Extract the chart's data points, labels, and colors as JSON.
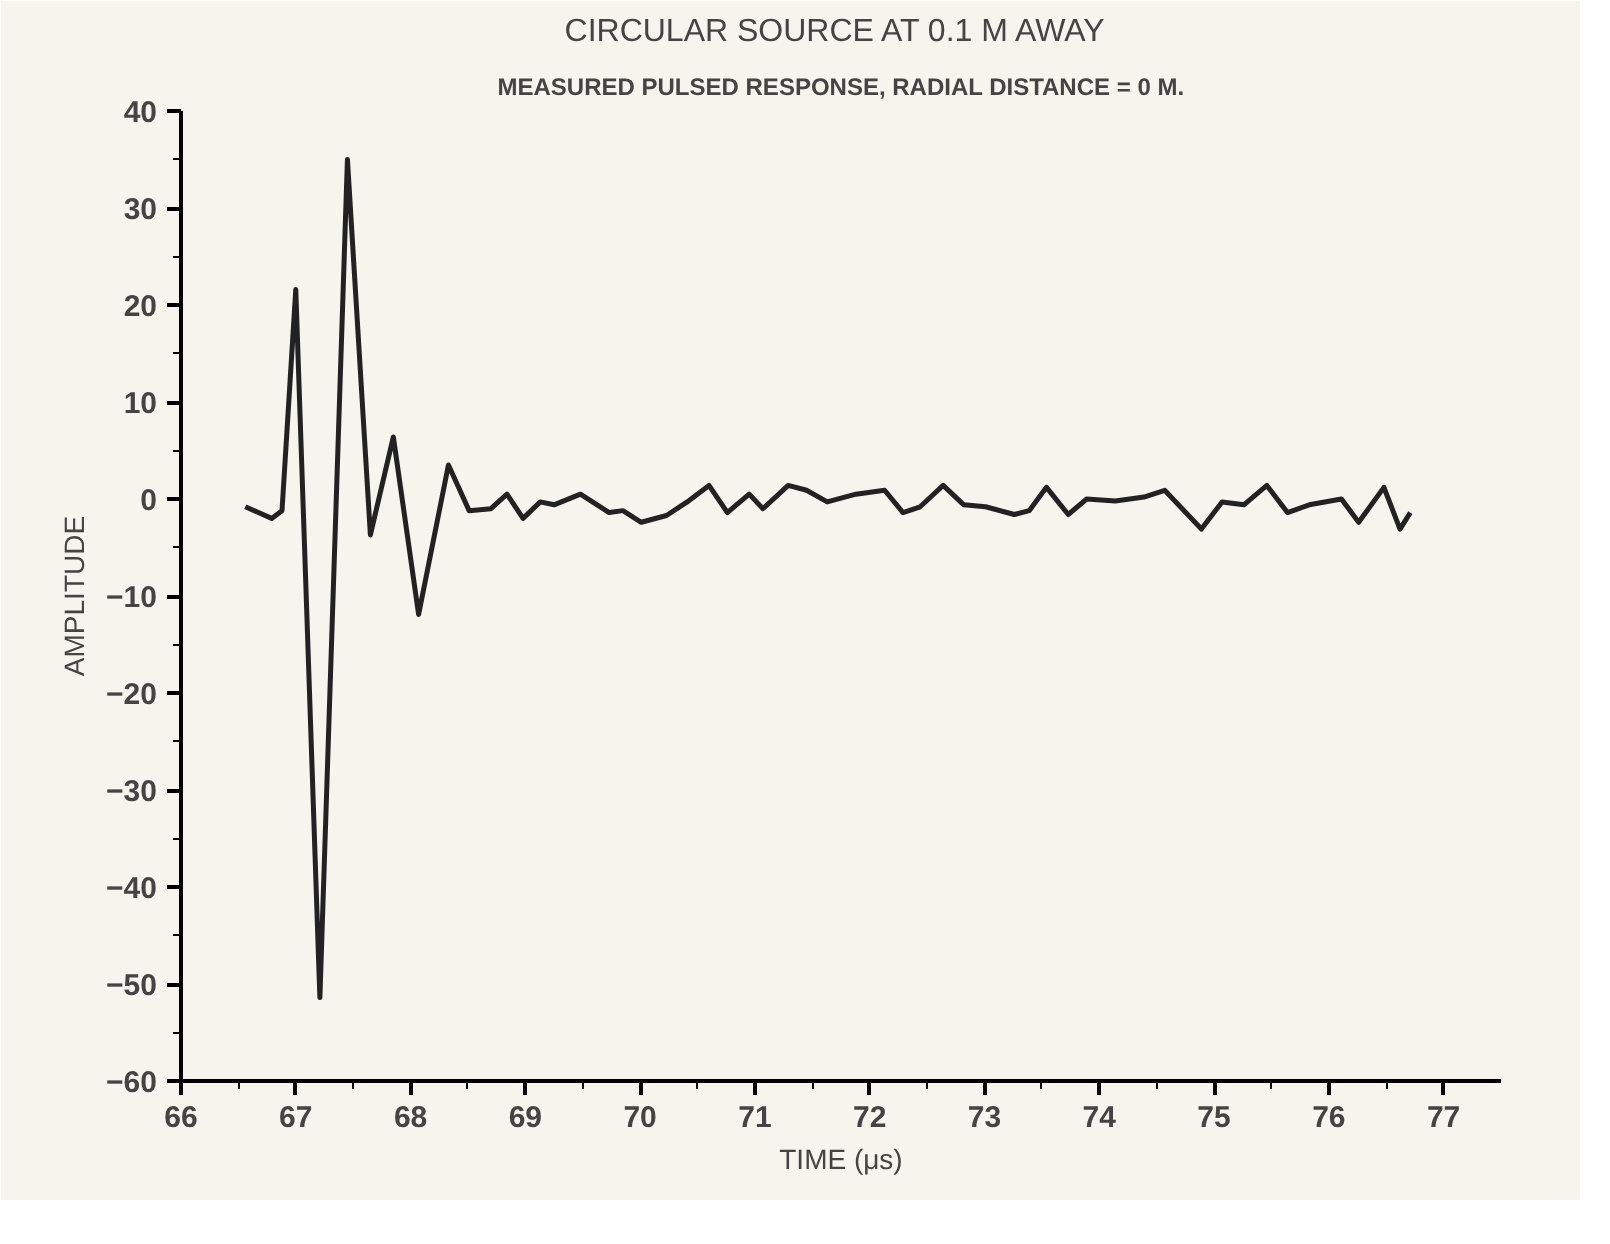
{
  "chart_data": {
    "type": "line",
    "title": "CIRCULAR SOURCE AT 0.1  M AWAY",
    "subtitle": "MEASURED PULSED RESPONSE, RADIAL DISTANCE = 0 M.",
    "xlabel": "TIME (μs)",
    "ylabel": "AMPLITUDE",
    "x": [
      66.56,
      66.79,
      66.88,
      67.0,
      67.21,
      67.45,
      67.65,
      67.85,
      68.07,
      68.33,
      68.51,
      68.7,
      68.84,
      68.98,
      69.13,
      69.25,
      69.48,
      69.73,
      69.85,
      70.01,
      70.23,
      70.41,
      70.6,
      70.76,
      70.95,
      71.07,
      71.29,
      71.45,
      71.63,
      71.88,
      72.13,
      72.29,
      72.44,
      72.64,
      72.82,
      73.01,
      73.26,
      73.39,
      73.54,
      73.73,
      73.89,
      74.14,
      74.39,
      74.57,
      74.89,
      75.07,
      75.26,
      75.46,
      75.64,
      75.83,
      76.11,
      76.26,
      76.48,
      76.62,
      76.71
    ],
    "series": [
      {
        "color": "#222222",
        "values": [
          -0.8,
          -2,
          -1.2,
          21.6,
          -51.4,
          35,
          -3.7,
          6.4,
          -11.9,
          3.5,
          -1.2,
          -1,
          0.5,
          -2,
          -0.3,
          -0.6,
          0.5,
          -1.4,
          -1.2,
          -2.4,
          -1.7,
          -0.3,
          1.4,
          -1.4,
          0.5,
          -1,
          1.4,
          0.9,
          -0.3,
          0.5,
          0.9,
          -1.4,
          -0.8,
          1.4,
          -0.6,
          -0.8,
          -1.6,
          -1.2,
          1.2,
          -1.6,
          0,
          -0.2,
          0.2,
          0.9,
          -3.1,
          -0.3,
          -0.6,
          1.4,
          -1.4,
          -0.6,
          0,
          -2.4,
          1.2,
          -3.1,
          -1.4
        ]
      }
    ],
    "xlim": [
      66,
      77.5
    ],
    "ylim": [
      -60,
      40
    ],
    "xticks": [
      66,
      {
        "value": 66.5,
        "label": null
      },
      67,
      {
        "value": 67.5,
        "label": null
      },
      68,
      {
        "value": 68.5,
        "label": null
      },
      69,
      {
        "value": 69.5,
        "label": null
      },
      70,
      {
        "value": 70.5,
        "label": null
      },
      71,
      {
        "value": 71.5,
        "label": null
      },
      72,
      {
        "value": 72.5,
        "label": null
      },
      73,
      {
        "value": 73.5,
        "label": null
      },
      74,
      {
        "value": 74.5,
        "label": null
      },
      75,
      {
        "value": 75.5,
        "label": null
      },
      76,
      {
        "value": 76.5,
        "label": null
      },
      77
    ],
    "yticks": [
      -60,
      {
        "value": -55,
        "label": null
      },
      -50,
      {
        "value": -45,
        "label": null
      },
      -40,
      {
        "value": -35,
        "label": null
      },
      -30,
      {
        "value": -25,
        "label": null
      },
      -20,
      {
        "value": -15,
        "label": null
      },
      -10,
      {
        "value": -5,
        "label": null
      },
      0,
      {
        "value": 5,
        "label": null
      },
      10,
      {
        "value": 15,
        "label": null
      },
      20,
      {
        "value": 25,
        "label": null
      },
      30,
      {
        "value": 35,
        "label": null
      },
      40
    ],
    "grid": false,
    "marker": "none",
    "line_style": "solid"
  }
}
